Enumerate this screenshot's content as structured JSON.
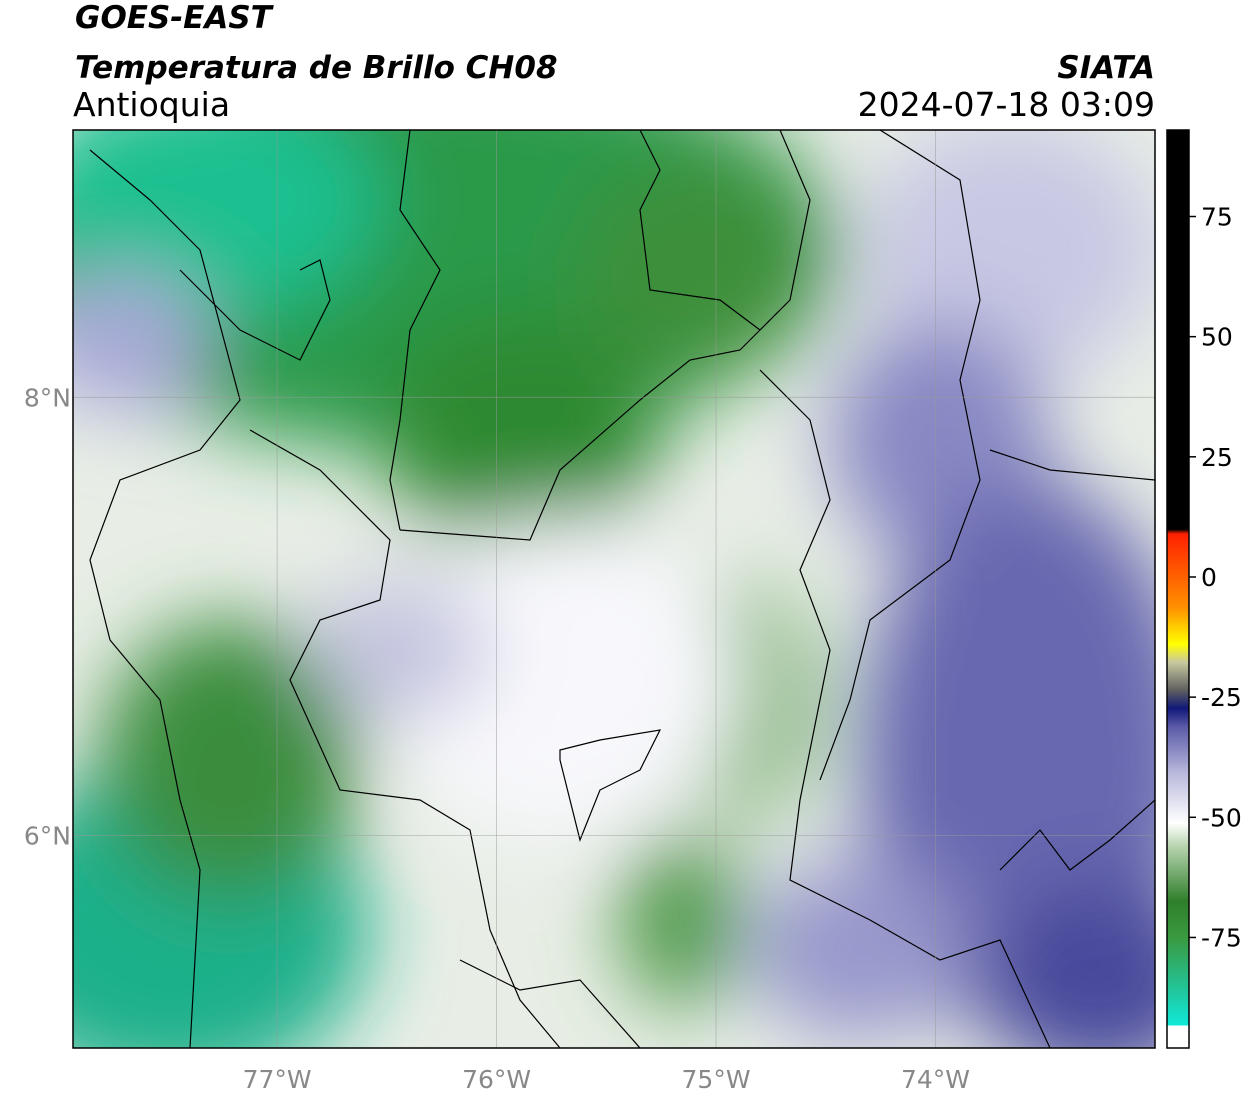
{
  "header": {
    "title": "GOES-EAST",
    "subtitle": "Temperatura de Brillo CH08",
    "region": "Antioquia",
    "source": "SIATA",
    "datetime": "2024-07-18 03:09"
  },
  "map": {
    "lonlim": [
      -77.93,
      -73.0
    ],
    "latlim": [
      5.03,
      9.22
    ],
    "lonticks": [
      {
        "value": -77,
        "label": "77°W"
      },
      {
        "value": -76,
        "label": "76°W"
      },
      {
        "value": -75,
        "label": "75°W"
      },
      {
        "value": -74,
        "label": "74°W"
      }
    ],
    "latticks": [
      {
        "value": 8,
        "label": "8°N"
      },
      {
        "value": 6,
        "label": "6°N"
      }
    ],
    "grid": true
  },
  "colorbar": {
    "lim": [
      -98,
      93
    ],
    "ticks": [
      75,
      50,
      25,
      0,
      -25,
      -50,
      -75
    ]
  }
}
